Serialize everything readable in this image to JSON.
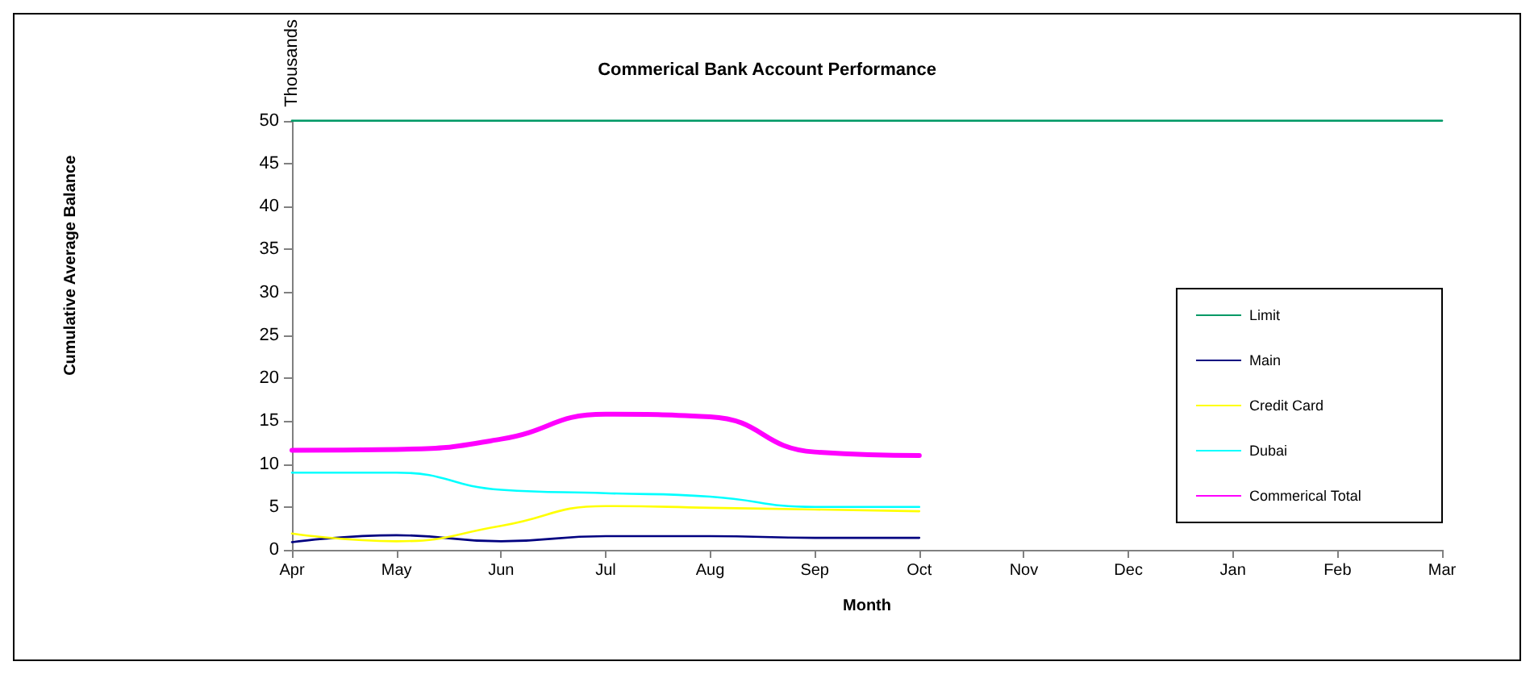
{
  "chart_data": {
    "type": "line",
    "title": "Commerical Bank Account Performance",
    "xlabel": "Month",
    "ylabel": "Thousands",
    "annotations": [
      "Cumulative Average Balance"
    ],
    "categories": [
      "Apr",
      "May",
      "Jun",
      "Jul",
      "Aug",
      "Sep",
      "Oct",
      "Nov",
      "Dec",
      "Jan",
      "Feb",
      "Mar"
    ],
    "series": [
      {
        "name": "Limit",
        "color": "#009966",
        "values": [
          50,
          50,
          50,
          50,
          50,
          50,
          50,
          50,
          50,
          50,
          50,
          50
        ]
      },
      {
        "name": "Main",
        "color": "#000080",
        "values": [
          0.9,
          1.7,
          1.0,
          1.6,
          1.6,
          1.4,
          1.4,
          null,
          null,
          null,
          null,
          null
        ]
      },
      {
        "name": "Credit Card",
        "color": "#ffff00",
        "values": [
          1.9,
          1.0,
          2.8,
          5.1,
          4.9,
          4.7,
          4.5,
          null,
          null,
          null,
          null,
          null
        ]
      },
      {
        "name": "Dubai",
        "color": "#00ffff",
        "values": [
          9.0,
          9.0,
          7.0,
          6.6,
          6.2,
          5.0,
          5.0,
          null,
          null,
          null,
          null,
          null
        ]
      },
      {
        "name": "Commerical Total",
        "color": "#ff00ff",
        "values": [
          11.6,
          11.7,
          12.9,
          15.8,
          15.5,
          11.4,
          11.0,
          null,
          null,
          null,
          null,
          null
        ]
      }
    ],
    "ylim": [
      0,
      50
    ],
    "yticks": [
      0,
      5,
      10,
      15,
      20,
      25,
      30,
      35,
      40,
      45,
      50
    ],
    "grid": false,
    "legend": "right",
    "marker": "none",
    "line_style": "solid"
  }
}
